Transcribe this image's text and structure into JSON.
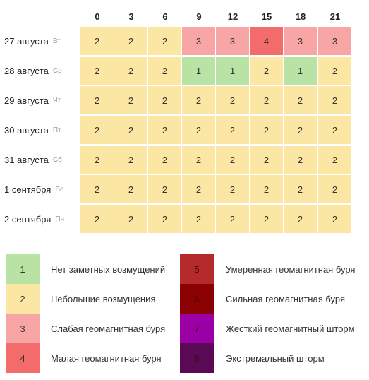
{
  "hours": [
    "0",
    "3",
    "6",
    "9",
    "12",
    "15",
    "18",
    "21"
  ],
  "days": [
    {
      "date": "27 августа",
      "dow": "Вт",
      "values": [
        "2",
        "2",
        "2",
        "3",
        "3",
        "4",
        "3",
        "3"
      ]
    },
    {
      "date": "28 августа",
      "dow": "Ср",
      "values": [
        "2",
        "2",
        "2",
        "1",
        "1",
        "2",
        "1",
        "2"
      ]
    },
    {
      "date": "29 августа",
      "dow": "Чт",
      "values": [
        "2",
        "2",
        "2",
        "2",
        "2",
        "2",
        "2",
        "2"
      ]
    },
    {
      "date": "30 августа",
      "dow": "Пт",
      "values": [
        "2",
        "2",
        "2",
        "2",
        "2",
        "2",
        "2",
        "2"
      ]
    },
    {
      "date": "31 августа",
      "dow": "Сб",
      "values": [
        "2",
        "2",
        "2",
        "2",
        "2",
        "2",
        "2",
        "2"
      ]
    },
    {
      "date": "1 сентября",
      "dow": "Вс",
      "values": [
        "2",
        "2",
        "2",
        "2",
        "2",
        "2",
        "2",
        "2"
      ]
    },
    {
      "date": "2 сентября",
      "dow": "Пн",
      "values": [
        "2",
        "2",
        "2",
        "2",
        "2",
        "2",
        "2",
        "2"
      ]
    }
  ],
  "level_colors": {
    "1": "#b9e3a4",
    "2": "#fbe6a3",
    "3": "#f8a5a5",
    "4": "#f36b6b",
    "5": "#b52a2a",
    "6": "#8b0000",
    "7": "#9b00a6",
    "8": "#5a0a55"
  },
  "legend": [
    {
      "level": "1",
      "label": "Нет заметных возмущений"
    },
    {
      "level": "2",
      "label": "Небольшие возмущения"
    },
    {
      "level": "3",
      "label": "Слабая геомагнитная буря"
    },
    {
      "level": "4",
      "label": "Малая геомагнитная буря"
    },
    {
      "level": "5",
      "label": "Умеренная геомагнитная буря"
    },
    {
      "level": "6",
      "label": "Сильная геомагнитная буря"
    },
    {
      "level": "7",
      "label": "Жесткий геомагнитный шторм"
    },
    {
      "level": "8",
      "label": "Экстремальный шторм"
    }
  ]
}
